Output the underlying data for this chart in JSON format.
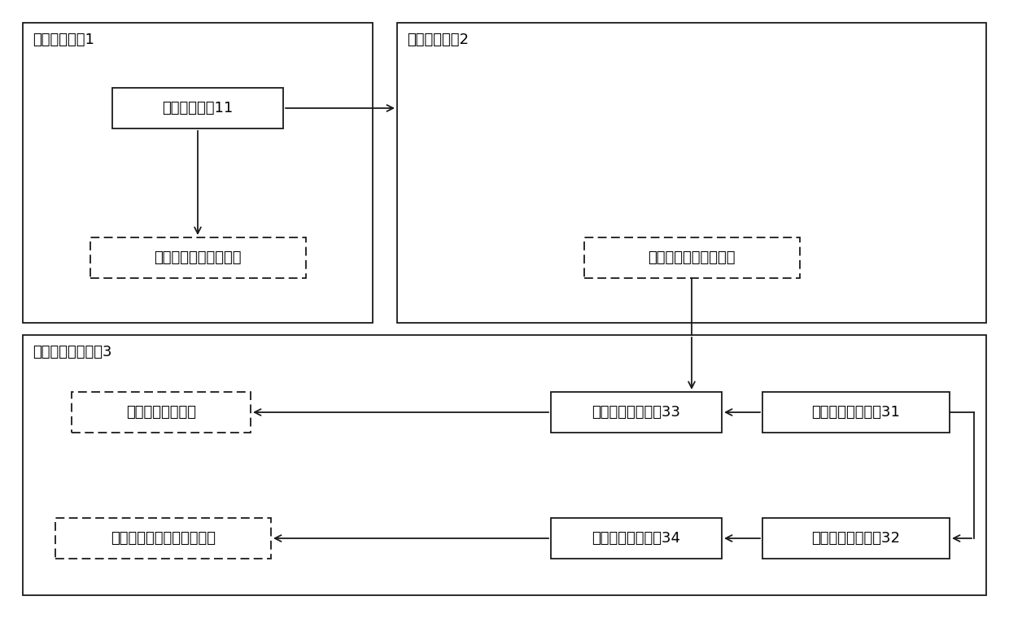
{
  "bg_color": "#ffffff",
  "line_color": "#1a1a1a",
  "box1_label": "人脸管理单元1",
  "box2_label": "门禁管理单元2",
  "box3_label": "异常识别定位单元3",
  "inner_box11_label": "图像采集设备11",
  "dash_box12_label": "生成第一门禁使用记录",
  "dash_box21_label": "生成第二门禁使用记录",
  "inner_box31_label": "第一门禁查询模块31",
  "inner_box32_label": "第二门禁查询模块32",
  "inner_box33_label": "异常警告识别模块33",
  "inner_box34_label": "异常警告定位模块34",
  "dash_box31_label": "生成门禁异常警告",
  "dash_box32_label": "获取门禁使用者的位置信息",
  "font_size": 13,
  "label_font_size": 13
}
